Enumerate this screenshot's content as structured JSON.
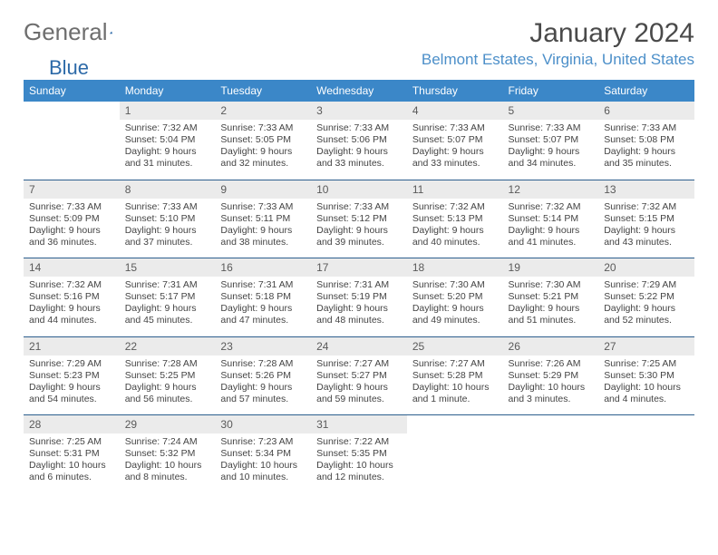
{
  "logo": {
    "text1": "General",
    "text2": "Blue"
  },
  "title": "January 2024",
  "location": "Belmont Estates, Virginia, United States",
  "colors": {
    "header_bg": "#3b87c8",
    "header_text": "#ffffff",
    "daynum_bg": "#ebebeb",
    "daynum_text": "#5a5a5a",
    "divider": "#2d5f8e",
    "location_text": "#4c8fc9",
    "logo_gray": "#6e6e6e",
    "logo_blue": "#2d6aa8"
  },
  "day_names": [
    "Sunday",
    "Monday",
    "Tuesday",
    "Wednesday",
    "Thursday",
    "Friday",
    "Saturday"
  ],
  "weeks": [
    [
      {
        "n": "",
        "sunrise": "",
        "sunset": "",
        "daylight": ""
      },
      {
        "n": "1",
        "sunrise": "Sunrise: 7:32 AM",
        "sunset": "Sunset: 5:04 PM",
        "daylight": "Daylight: 9 hours and 31 minutes."
      },
      {
        "n": "2",
        "sunrise": "Sunrise: 7:33 AM",
        "sunset": "Sunset: 5:05 PM",
        "daylight": "Daylight: 9 hours and 32 minutes."
      },
      {
        "n": "3",
        "sunrise": "Sunrise: 7:33 AM",
        "sunset": "Sunset: 5:06 PM",
        "daylight": "Daylight: 9 hours and 33 minutes."
      },
      {
        "n": "4",
        "sunrise": "Sunrise: 7:33 AM",
        "sunset": "Sunset: 5:07 PM",
        "daylight": "Daylight: 9 hours and 33 minutes."
      },
      {
        "n": "5",
        "sunrise": "Sunrise: 7:33 AM",
        "sunset": "Sunset: 5:07 PM",
        "daylight": "Daylight: 9 hours and 34 minutes."
      },
      {
        "n": "6",
        "sunrise": "Sunrise: 7:33 AM",
        "sunset": "Sunset: 5:08 PM",
        "daylight": "Daylight: 9 hours and 35 minutes."
      }
    ],
    [
      {
        "n": "7",
        "sunrise": "Sunrise: 7:33 AM",
        "sunset": "Sunset: 5:09 PM",
        "daylight": "Daylight: 9 hours and 36 minutes."
      },
      {
        "n": "8",
        "sunrise": "Sunrise: 7:33 AM",
        "sunset": "Sunset: 5:10 PM",
        "daylight": "Daylight: 9 hours and 37 minutes."
      },
      {
        "n": "9",
        "sunrise": "Sunrise: 7:33 AM",
        "sunset": "Sunset: 5:11 PM",
        "daylight": "Daylight: 9 hours and 38 minutes."
      },
      {
        "n": "10",
        "sunrise": "Sunrise: 7:33 AM",
        "sunset": "Sunset: 5:12 PM",
        "daylight": "Daylight: 9 hours and 39 minutes."
      },
      {
        "n": "11",
        "sunrise": "Sunrise: 7:32 AM",
        "sunset": "Sunset: 5:13 PM",
        "daylight": "Daylight: 9 hours and 40 minutes."
      },
      {
        "n": "12",
        "sunrise": "Sunrise: 7:32 AM",
        "sunset": "Sunset: 5:14 PM",
        "daylight": "Daylight: 9 hours and 41 minutes."
      },
      {
        "n": "13",
        "sunrise": "Sunrise: 7:32 AM",
        "sunset": "Sunset: 5:15 PM",
        "daylight": "Daylight: 9 hours and 43 minutes."
      }
    ],
    [
      {
        "n": "14",
        "sunrise": "Sunrise: 7:32 AM",
        "sunset": "Sunset: 5:16 PM",
        "daylight": "Daylight: 9 hours and 44 minutes."
      },
      {
        "n": "15",
        "sunrise": "Sunrise: 7:31 AM",
        "sunset": "Sunset: 5:17 PM",
        "daylight": "Daylight: 9 hours and 45 minutes."
      },
      {
        "n": "16",
        "sunrise": "Sunrise: 7:31 AM",
        "sunset": "Sunset: 5:18 PM",
        "daylight": "Daylight: 9 hours and 47 minutes."
      },
      {
        "n": "17",
        "sunrise": "Sunrise: 7:31 AM",
        "sunset": "Sunset: 5:19 PM",
        "daylight": "Daylight: 9 hours and 48 minutes."
      },
      {
        "n": "18",
        "sunrise": "Sunrise: 7:30 AM",
        "sunset": "Sunset: 5:20 PM",
        "daylight": "Daylight: 9 hours and 49 minutes."
      },
      {
        "n": "19",
        "sunrise": "Sunrise: 7:30 AM",
        "sunset": "Sunset: 5:21 PM",
        "daylight": "Daylight: 9 hours and 51 minutes."
      },
      {
        "n": "20",
        "sunrise": "Sunrise: 7:29 AM",
        "sunset": "Sunset: 5:22 PM",
        "daylight": "Daylight: 9 hours and 52 minutes."
      }
    ],
    [
      {
        "n": "21",
        "sunrise": "Sunrise: 7:29 AM",
        "sunset": "Sunset: 5:23 PM",
        "daylight": "Daylight: 9 hours and 54 minutes."
      },
      {
        "n": "22",
        "sunrise": "Sunrise: 7:28 AM",
        "sunset": "Sunset: 5:25 PM",
        "daylight": "Daylight: 9 hours and 56 minutes."
      },
      {
        "n": "23",
        "sunrise": "Sunrise: 7:28 AM",
        "sunset": "Sunset: 5:26 PM",
        "daylight": "Daylight: 9 hours and 57 minutes."
      },
      {
        "n": "24",
        "sunrise": "Sunrise: 7:27 AM",
        "sunset": "Sunset: 5:27 PM",
        "daylight": "Daylight: 9 hours and 59 minutes."
      },
      {
        "n": "25",
        "sunrise": "Sunrise: 7:27 AM",
        "sunset": "Sunset: 5:28 PM",
        "daylight": "Daylight: 10 hours and 1 minute."
      },
      {
        "n": "26",
        "sunrise": "Sunrise: 7:26 AM",
        "sunset": "Sunset: 5:29 PM",
        "daylight": "Daylight: 10 hours and 3 minutes."
      },
      {
        "n": "27",
        "sunrise": "Sunrise: 7:25 AM",
        "sunset": "Sunset: 5:30 PM",
        "daylight": "Daylight: 10 hours and 4 minutes."
      }
    ],
    [
      {
        "n": "28",
        "sunrise": "Sunrise: 7:25 AM",
        "sunset": "Sunset: 5:31 PM",
        "daylight": "Daylight: 10 hours and 6 minutes."
      },
      {
        "n": "29",
        "sunrise": "Sunrise: 7:24 AM",
        "sunset": "Sunset: 5:32 PM",
        "daylight": "Daylight: 10 hours and 8 minutes."
      },
      {
        "n": "30",
        "sunrise": "Sunrise: 7:23 AM",
        "sunset": "Sunset: 5:34 PM",
        "daylight": "Daylight: 10 hours and 10 minutes."
      },
      {
        "n": "31",
        "sunrise": "Sunrise: 7:22 AM",
        "sunset": "Sunset: 5:35 PM",
        "daylight": "Daylight: 10 hours and 12 minutes."
      },
      {
        "n": "",
        "sunrise": "",
        "sunset": "",
        "daylight": ""
      },
      {
        "n": "",
        "sunrise": "",
        "sunset": "",
        "daylight": ""
      },
      {
        "n": "",
        "sunrise": "",
        "sunset": "",
        "daylight": ""
      }
    ]
  ]
}
